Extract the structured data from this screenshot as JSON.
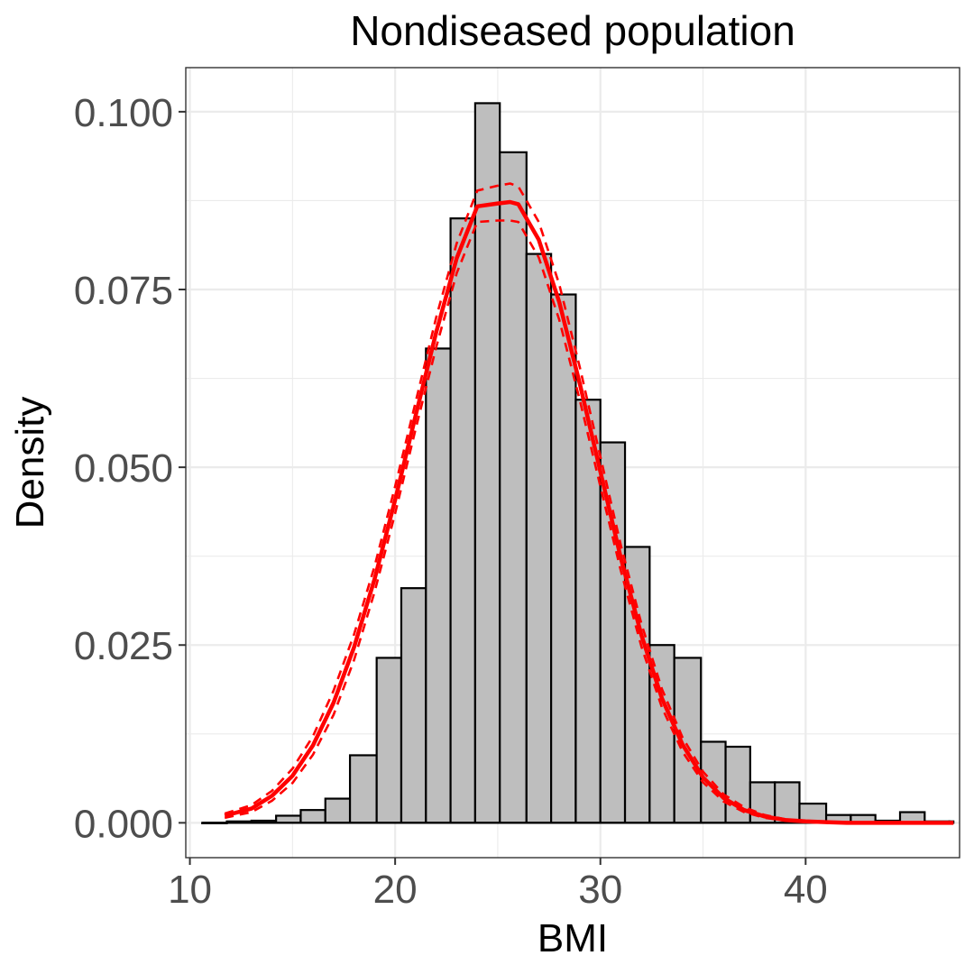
{
  "chart_data": {
    "type": "bar",
    "title": "Nondiseased population",
    "xlabel": "BMI",
    "ylabel": "Density",
    "xlim": [
      9.8,
      47.5
    ],
    "ylim": [
      -0.0049,
      0.1062
    ],
    "x_ticks": [
      10,
      20,
      30,
      40
    ],
    "x_tick_labels": [
      "10",
      "20",
      "30",
      "40"
    ],
    "y_ticks": [
      0.0,
      0.025,
      0.05,
      0.075,
      0.1
    ],
    "y_tick_labels": [
      "0.000",
      "0.025",
      "0.050",
      "0.075",
      "0.100"
    ],
    "grid": true,
    "histogram": {
      "bin_width": 1.22,
      "bins": [
        {
          "x0": 10.6,
          "x1": 11.8,
          "density": 0.0
        },
        {
          "x0": 11.8,
          "x1": 13.0,
          "density": 0.0002
        },
        {
          "x0": 13.0,
          "x1": 14.2,
          "density": 0.0003
        },
        {
          "x0": 14.2,
          "x1": 15.4,
          "density": 0.001
        },
        {
          "x0": 15.4,
          "x1": 16.6,
          "density": 0.0018
        },
        {
          "x0": 16.6,
          "x1": 17.8,
          "density": 0.0034
        },
        {
          "x0": 17.8,
          "x1": 19.1,
          "density": 0.0095
        },
        {
          "x0": 19.1,
          "x1": 20.3,
          "density": 0.0232
        },
        {
          "x0": 20.3,
          "x1": 21.5,
          "density": 0.033
        },
        {
          "x0": 21.5,
          "x1": 22.7,
          "density": 0.0667
        },
        {
          "x0": 22.7,
          "x1": 23.9,
          "density": 0.085
        },
        {
          "x0": 23.9,
          "x1": 25.1,
          "density": 0.1012
        },
        {
          "x0": 25.1,
          "x1": 26.4,
          "density": 0.0943
        },
        {
          "x0": 26.4,
          "x1": 27.6,
          "density": 0.08
        },
        {
          "x0": 27.6,
          "x1": 28.8,
          "density": 0.0743
        },
        {
          "x0": 28.8,
          "x1": 30.0,
          "density": 0.0595
        },
        {
          "x0": 30.0,
          "x1": 31.2,
          "density": 0.0535
        },
        {
          "x0": 31.2,
          "x1": 32.4,
          "density": 0.0388
        },
        {
          "x0": 32.4,
          "x1": 33.6,
          "density": 0.025
        },
        {
          "x0": 33.6,
          "x1": 34.9,
          "density": 0.0232
        },
        {
          "x0": 34.9,
          "x1": 36.1,
          "density": 0.0114
        },
        {
          "x0": 36.1,
          "x1": 37.3,
          "density": 0.0107
        },
        {
          "x0": 37.3,
          "x1": 38.5,
          "density": 0.0057
        },
        {
          "x0": 38.5,
          "x1": 39.7,
          "density": 0.0057
        },
        {
          "x0": 39.7,
          "x1": 41.0,
          "density": 0.0027
        },
        {
          "x0": 41.0,
          "x1": 42.2,
          "density": 0.0011
        },
        {
          "x0": 42.2,
          "x1": 43.4,
          "density": 0.0011
        },
        {
          "x0": 43.4,
          "x1": 44.6,
          "density": 0.0003
        },
        {
          "x0": 44.6,
          "x1": 45.8,
          "density": 0.0015
        },
        {
          "x0": 45.8,
          "x1": 47.0,
          "density": 0.0002
        },
        {
          "x0": 47.0,
          "x1": 47.2,
          "density": 0.0002
        }
      ]
    },
    "curves": {
      "x": [
        11.7,
        13,
        14,
        15,
        16,
        17,
        18,
        19,
        20,
        21,
        22,
        23,
        24,
        25,
        25.6,
        26,
        27,
        28,
        29,
        30,
        31,
        32,
        33,
        34,
        35,
        36,
        37,
        38,
        39,
        40,
        41,
        42,
        44,
        47.2
      ],
      "series": [
        {
          "style": "solid",
          "y": [
            0.001,
            0.002,
            0.0038,
            0.0066,
            0.0109,
            0.0169,
            0.0247,
            0.0343,
            0.0454,
            0.0573,
            0.069,
            0.0794,
            0.0867,
            0.0871,
            0.0873,
            0.087,
            0.082,
            0.0732,
            0.0617,
            0.0494,
            0.0372,
            0.0264,
            0.0175,
            0.011,
            0.0064,
            0.0035,
            0.0018,
            0.0009,
            0.0004,
            0.0002,
            0.0001,
            0.0,
            0.0,
            0.0
          ]
        },
        {
          "style": "dashed",
          "y": [
            0.0013,
            0.0025,
            0.0045,
            0.0076,
            0.0122,
            0.0186,
            0.0265,
            0.0361,
            0.0473,
            0.0592,
            0.0711,
            0.0815,
            0.0889,
            0.0896,
            0.0899,
            0.0895,
            0.0845,
            0.0757,
            0.064,
            0.0515,
            0.039,
            0.028,
            0.0188,
            0.012,
            0.0072,
            0.004,
            0.0022,
            0.0011,
            0.0005,
            0.0002,
            0.0001,
            0.0,
            0.0,
            0.0
          ]
        },
        {
          "style": "dashed",
          "y": [
            0.0007,
            0.0015,
            0.0031,
            0.0056,
            0.0096,
            0.0152,
            0.0229,
            0.0325,
            0.0435,
            0.0554,
            0.0669,
            0.0773,
            0.0845,
            0.0847,
            0.0847,
            0.0845,
            0.0795,
            0.0707,
            0.0594,
            0.0473,
            0.0354,
            0.0248,
            0.0162,
            0.01,
            0.0057,
            0.003,
            0.0015,
            0.0007,
            0.0003,
            0.0001,
            0.0,
            0.0,
            0.0,
            0.0
          ]
        }
      ],
      "color": "#ff0000"
    },
    "colors": {
      "bar_fill": "#bebebe",
      "bar_stroke": "#000000",
      "grid": "#ebebeb",
      "panel_border": "#333333"
    }
  }
}
